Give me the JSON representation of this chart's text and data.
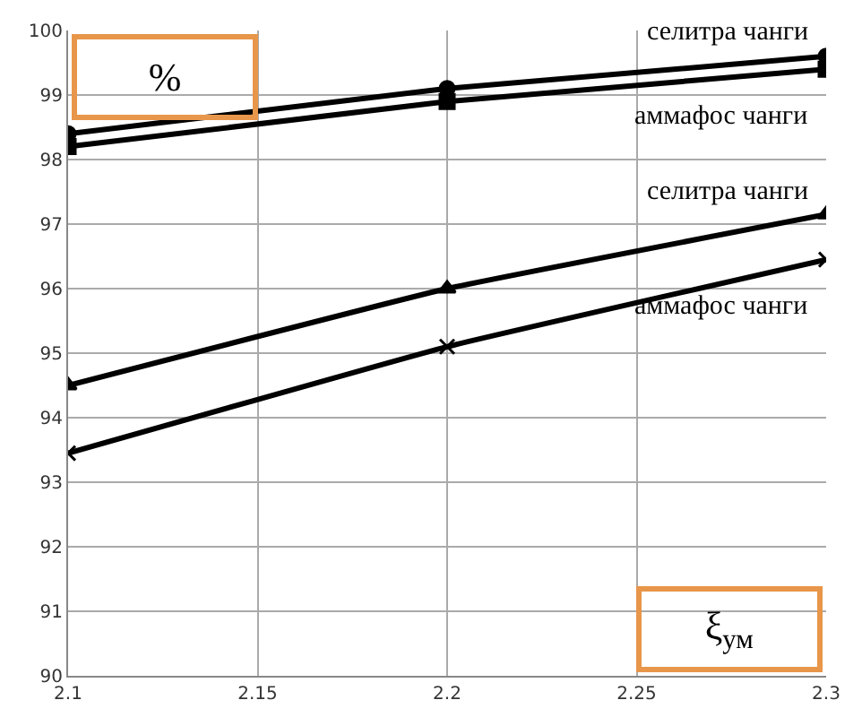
{
  "chart_data": {
    "type": "line",
    "xlabel": "ξ$_{ум}$",
    "ylabel": "%",
    "x": [
      2.1,
      2.2,
      2.3
    ],
    "series": [
      {
        "name": "селитра чанги",
        "color": "#000000",
        "marker": "circle",
        "values": [
          98.4,
          99.1,
          99.6
        ]
      },
      {
        "name": "аммафос чанги",
        "color": "#000000",
        "marker": "square",
        "values": [
          98.2,
          98.9,
          99.4
        ]
      },
      {
        "name": "селитра чанги",
        "color": "#000000",
        "marker": "triangle",
        "values": [
          94.5,
          96.0,
          97.15
        ]
      },
      {
        "name": "аммафос чанги",
        "color": "#000000",
        "marker": "cross",
        "values": [
          93.45,
          95.1,
          96.45
        ]
      }
    ],
    "xlim": [
      2.1,
      2.3
    ],
    "xticks": [
      2.1,
      2.15,
      2.2,
      2.25,
      2.3
    ],
    "ylim": [
      90,
      100
    ],
    "yticks": [
      90,
      91,
      92,
      93,
      94,
      95,
      96,
      97,
      98,
      99,
      100
    ],
    "grid": true,
    "legend": false
  }
}
